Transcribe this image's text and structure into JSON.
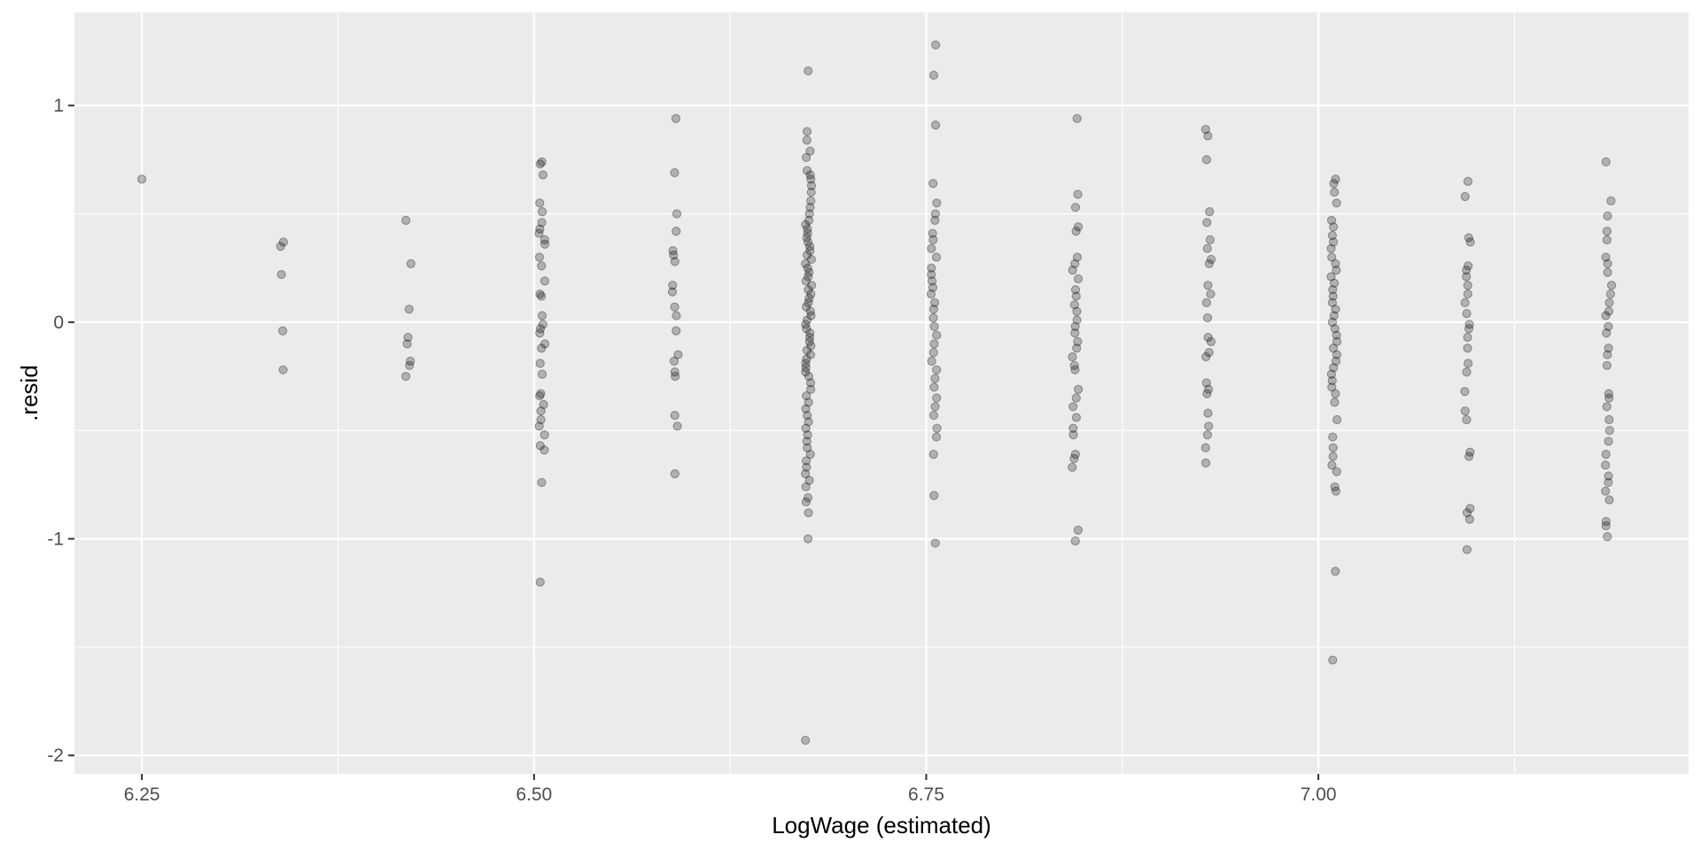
{
  "chart_data": {
    "type": "scatter",
    "title": "",
    "xlabel": "LogWage (estimated)",
    "ylabel": ".resid",
    "xlim": [
      6.207,
      7.236
    ],
    "ylim": [
      -2.085,
      1.43
    ],
    "x_ticks": [
      6.25,
      6.5,
      6.75,
      7.0
    ],
    "x_tick_labels": [
      "6.25",
      "6.50",
      "6.75",
      "7.00"
    ],
    "y_ticks": [
      -2,
      -1,
      0,
      1
    ],
    "y_tick_labels": [
      "-2",
      "-1",
      "0",
      "1"
    ],
    "grid": true,
    "legend": "none",
    "colors": {
      "panel": "#ebebeb",
      "grid": "#ffffff",
      "point_fill": "#000000",
      "point_alpha": 0.25
    },
    "series": [
      {
        "x": 6.25,
        "y": [
          0.66
        ]
      },
      {
        "x": 6.34,
        "y": [
          0.37,
          0.35,
          0.22,
          -0.04,
          -0.22
        ]
      },
      {
        "x": 6.42,
        "y": [
          0.47,
          0.27,
          0.06,
          -0.07,
          -0.1,
          -0.18,
          -0.2,
          -0.25
        ]
      },
      {
        "x": 6.505,
        "y": [
          0.74,
          0.73,
          0.68,
          0.55,
          0.51,
          0.46,
          0.43,
          0.41,
          0.38,
          0.36,
          0.3,
          0.26,
          0.19,
          0.13,
          0.12,
          0.03,
          -0.01,
          -0.03,
          -0.05,
          -0.1,
          -0.12,
          -0.19,
          -0.24,
          -0.33,
          -0.34,
          -0.38,
          -0.41,
          -0.45,
          -0.48,
          -0.52,
          -0.57,
          -0.59,
          -0.74,
          -1.2
        ]
      },
      {
        "x": 6.59,
        "y": [
          0.94,
          0.69,
          0.5,
          0.42,
          0.33,
          0.31,
          0.28,
          0.17,
          0.14,
          0.07,
          0.03,
          -0.04,
          -0.15,
          -0.18,
          -0.23,
          -0.25,
          -0.43,
          -0.48,
          -0.7
        ]
      },
      {
        "x": 6.675,
        "y": [
          1.16,
          0.88,
          0.84,
          0.79,
          0.76,
          0.7,
          0.68,
          0.66,
          0.63,
          0.6,
          0.56,
          0.53,
          0.5,
          0.47,
          0.45,
          0.43,
          0.41,
          0.39,
          0.37,
          0.35,
          0.33,
          0.31,
          0.29,
          0.27,
          0.25,
          0.23,
          0.21,
          0.19,
          0.17,
          0.15,
          0.13,
          0.11,
          0.09,
          0.07,
          0.05,
          0.03,
          0.01,
          -0.01,
          -0.03,
          -0.05,
          -0.07,
          -0.09,
          -0.11,
          -0.13,
          -0.15,
          -0.17,
          -0.19,
          -0.21,
          -0.23,
          -0.25,
          -0.28,
          -0.31,
          -0.34,
          -0.37,
          -0.4,
          -0.43,
          -0.46,
          -0.49,
          -0.52,
          -0.55,
          -0.58,
          -0.61,
          -0.64,
          -0.67,
          -0.7,
          -0.73,
          -0.76,
          -0.81,
          -0.83,
          -0.88,
          -1.0,
          -1.93
        ]
      },
      {
        "x": 6.755,
        "y": [
          1.28,
          1.14,
          0.91,
          0.64,
          0.55,
          0.5,
          0.47,
          0.41,
          0.38,
          0.34,
          0.3,
          0.25,
          0.22,
          0.19,
          0.16,
          0.13,
          0.09,
          0.06,
          0.02,
          -0.02,
          -0.06,
          -0.1,
          -0.14,
          -0.18,
          -0.22,
          -0.26,
          -0.3,
          -0.35,
          -0.39,
          -0.43,
          -0.49,
          -0.53,
          -0.61,
          -0.8,
          -1.02
        ]
      },
      {
        "x": 6.845,
        "y": [
          0.94,
          0.59,
          0.53,
          0.44,
          0.42,
          0.3,
          0.27,
          0.24,
          0.2,
          0.15,
          0.12,
          0.08,
          0.05,
          0.01,
          -0.02,
          -0.05,
          -0.09,
          -0.12,
          -0.16,
          -0.2,
          -0.22,
          -0.31,
          -0.35,
          -0.39,
          -0.44,
          -0.49,
          -0.52,
          -0.61,
          -0.63,
          -0.67,
          -0.96,
          -1.01
        ]
      },
      {
        "x": 6.93,
        "y": [
          0.89,
          0.86,
          0.75,
          0.51,
          0.46,
          0.38,
          0.34,
          0.29,
          0.27,
          0.17,
          0.13,
          0.09,
          0.02,
          -0.07,
          -0.09,
          -0.14,
          -0.16,
          -0.28,
          -0.31,
          -0.33,
          -0.42,
          -0.48,
          -0.52,
          -0.58,
          -0.65
        ]
      },
      {
        "x": 7.01,
        "y": [
          0.66,
          0.64,
          0.6,
          0.55,
          0.47,
          0.44,
          0.4,
          0.37,
          0.34,
          0.3,
          0.27,
          0.24,
          0.21,
          0.18,
          0.15,
          0.12,
          0.09,
          0.06,
          0.03,
          0.0,
          -0.03,
          -0.06,
          -0.09,
          -0.12,
          -0.15,
          -0.18,
          -0.21,
          -0.24,
          -0.27,
          -0.3,
          -0.33,
          -0.37,
          -0.45,
          -0.53,
          -0.58,
          -0.62,
          -0.66,
          -0.69,
          -0.76,
          -0.78,
          -1.15,
          -1.56
        ]
      },
      {
        "x": 7.095,
        "y": [
          0.65,
          0.58,
          0.39,
          0.37,
          0.26,
          0.24,
          0.21,
          0.17,
          0.13,
          0.09,
          0.04,
          -0.01,
          -0.03,
          -0.07,
          -0.12,
          -0.19,
          -0.23,
          -0.32,
          -0.41,
          -0.45,
          -0.6,
          -0.62,
          -0.86,
          -0.88,
          -0.91,
          -1.05
        ]
      },
      {
        "x": 7.185,
        "y": [
          0.74,
          0.56,
          0.49,
          0.42,
          0.38,
          0.3,
          0.27,
          0.23,
          0.17,
          0.13,
          0.09,
          0.05,
          0.03,
          -0.02,
          -0.05,
          -0.12,
          -0.15,
          -0.2,
          -0.33,
          -0.35,
          -0.39,
          -0.45,
          -0.5,
          -0.55,
          -0.61,
          -0.66,
          -0.71,
          -0.74,
          -0.78,
          -0.82,
          -0.92,
          -0.94,
          -0.99
        ]
      }
    ]
  }
}
